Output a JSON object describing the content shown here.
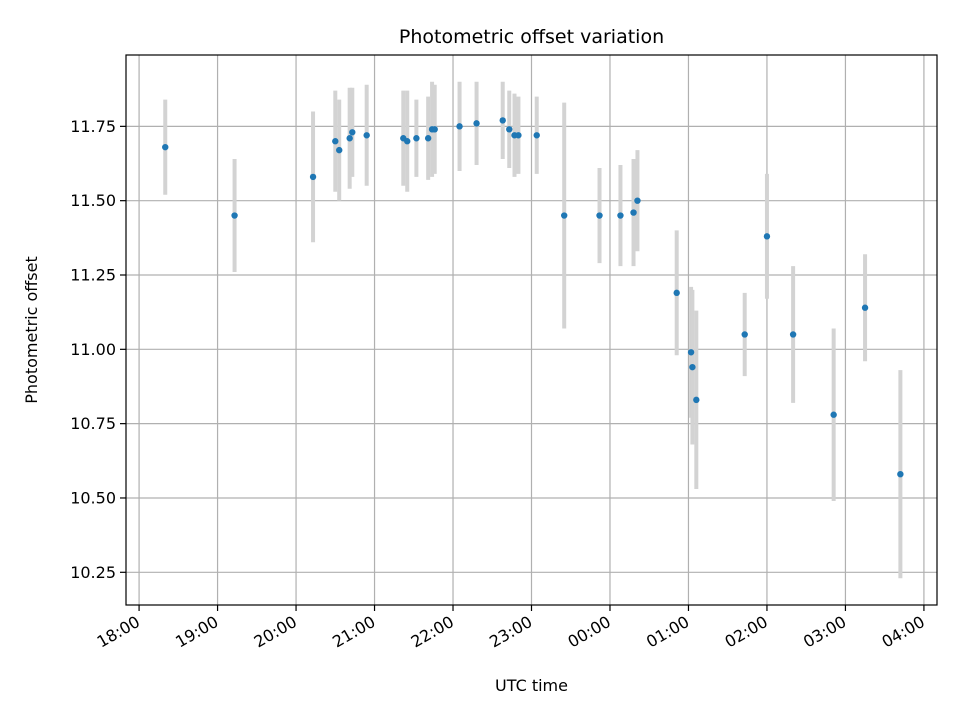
{
  "chart_data": {
    "type": "scatter",
    "title": "Photometric offset variation",
    "xlabel": "UTC time",
    "ylabel": "Photometric offset",
    "grid": true,
    "x_ticks": [
      "18:00",
      "19:00",
      "20:00",
      "21:00",
      "22:00",
      "23:00",
      "00:00",
      "01:00",
      "02:00",
      "03:00",
      "04:00"
    ],
    "y_ticks": [
      "10.25",
      "10.50",
      "10.75",
      "11.00",
      "11.25",
      "11.50",
      "11.75"
    ],
    "xlim": [
      "17:50",
      "04:10"
    ],
    "ylim": [
      10.14,
      11.99
    ],
    "x_tick_values": [
      "18:00",
      "19:00",
      "20:00",
      "21:00",
      "22:00",
      "23:00",
      "00:00",
      "01:00",
      "02:00",
      "03:00",
      "04:00"
    ],
    "y_tick_values": [
      10.25,
      10.5,
      10.75,
      11.0,
      11.25,
      11.5,
      11.75
    ],
    "points": [
      {
        "t": "18:20",
        "y": 11.68,
        "err": 0.16
      },
      {
        "t": "19:13",
        "y": 11.45,
        "err": 0.19
      },
      {
        "t": "20:13",
        "y": 11.58,
        "err": 0.22
      },
      {
        "t": "20:30",
        "y": 11.7,
        "err": 0.17
      },
      {
        "t": "20:33",
        "y": 11.67,
        "err": 0.17
      },
      {
        "t": "20:41",
        "y": 11.71,
        "err": 0.17
      },
      {
        "t": "20:43",
        "y": 11.73,
        "err": 0.15
      },
      {
        "t": "20:54",
        "y": 11.72,
        "err": 0.17
      },
      {
        "t": "21:22",
        "y": 11.71,
        "err": 0.16
      },
      {
        "t": "21:25",
        "y": 11.7,
        "err": 0.17
      },
      {
        "t": "21:32",
        "y": 11.71,
        "err": 0.13
      },
      {
        "t": "21:41",
        "y": 11.71,
        "err": 0.14
      },
      {
        "t": "21:44",
        "y": 11.74,
        "err": 0.16
      },
      {
        "t": "21:46",
        "y": 11.74,
        "err": 0.15
      },
      {
        "t": "22:05",
        "y": 11.75,
        "err": 0.15
      },
      {
        "t": "22:18",
        "y": 11.76,
        "err": 0.14
      },
      {
        "t": "22:38",
        "y": 11.77,
        "err": 0.13
      },
      {
        "t": "22:43",
        "y": 11.74,
        "err": 0.13
      },
      {
        "t": "22:47",
        "y": 11.72,
        "err": 0.14
      },
      {
        "t": "22:50",
        "y": 11.72,
        "err": 0.13
      },
      {
        "t": "23:04",
        "y": 11.72,
        "err": 0.13
      },
      {
        "t": "23:25",
        "y": 11.45,
        "err": 0.38
      },
      {
        "t": "23:52",
        "y": 11.45,
        "err": 0.16
      },
      {
        "t": "00:08",
        "y": 11.45,
        "err": 0.17
      },
      {
        "t": "00:18",
        "y": 11.46,
        "err": 0.18
      },
      {
        "t": "00:21",
        "y": 11.5,
        "err": 0.17
      },
      {
        "t": "00:51",
        "y": 11.19,
        "err": 0.21
      },
      {
        "t": "01:02",
        "y": 10.99,
        "err": 0.22
      },
      {
        "t": "01:03",
        "y": 10.94,
        "err": 0.26
      },
      {
        "t": "01:06",
        "y": 10.83,
        "err": 0.3
      },
      {
        "t": "01:43",
        "y": 11.05,
        "err": 0.14
      },
      {
        "t": "02:00",
        "y": 11.38,
        "err": 0.21
      },
      {
        "t": "02:20",
        "y": 11.05,
        "err": 0.23
      },
      {
        "t": "02:51",
        "y": 10.78,
        "err": 0.29
      },
      {
        "t": "03:15",
        "y": 11.14,
        "err": 0.18
      },
      {
        "t": "03:42",
        "y": 10.58,
        "err": 0.35
      }
    ],
    "colors": {
      "point": "#1f77b4",
      "errorbar": "#d3d3d3",
      "grid": "#b0b0b0",
      "axes": "#000000"
    }
  }
}
